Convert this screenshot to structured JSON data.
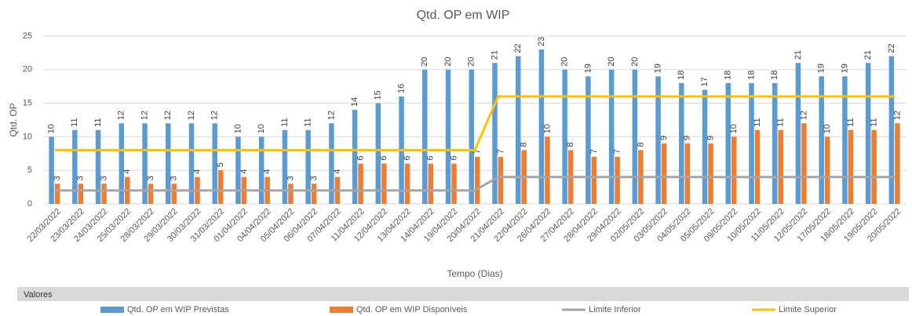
{
  "chart_data": {
    "type": "bar",
    "title": "Qtd. OP em WIP",
    "x_label": "Tempo (Dias)",
    "y_label": "Qtd. OP",
    "categories": [
      "22/03/2022",
      "23/03/2022",
      "24/03/2022",
      "25/03/2022",
      "28/03/2022",
      "29/03/2022",
      "30/03/2022",
      "31/03/2022",
      "01/04/2022",
      "04/04/2022",
      "05/04/2022",
      "06/04/2022",
      "07/04/2022",
      "11/04/2022",
      "12/04/2022",
      "13/04/2022",
      "14/04/2022",
      "19/04/2022",
      "20/04/2022",
      "21/04/2022",
      "22/04/2022",
      "26/04/2022",
      "27/04/2022",
      "28/04/2022",
      "29/04/2022",
      "02/05/2022",
      "03/05/2022",
      "04/05/2022",
      "05/05/2022",
      "09/05/2022",
      "10/05/2022",
      "11/05/2022",
      "12/05/2022",
      "17/05/2022",
      "18/05/2022",
      "19/05/2022",
      "20/05/2022"
    ],
    "series": [
      {
        "name": "Qtd. OP em WIP Previstas",
        "type": "bar",
        "color": "#5b9bd5",
        "values": [
          10,
          11,
          11,
          12,
          12,
          12,
          12,
          12,
          10,
          10,
          11,
          11,
          12,
          14,
          15,
          16,
          20,
          20,
          20,
          21,
          22,
          23,
          20,
          19,
          20,
          20,
          19,
          18,
          17,
          18,
          18,
          18,
          21,
          19,
          19,
          21,
          22
        ]
      },
      {
        "name": "Qtd. OP em WIP Disponíveis",
        "type": "bar",
        "color": "#ed7d31",
        "values": [
          3,
          3,
          3,
          4,
          3,
          3,
          4,
          5,
          4,
          4,
          3,
          3,
          4,
          6,
          6,
          6,
          6,
          6,
          7,
          7,
          8,
          10,
          8,
          7,
          7,
          8,
          9,
          9,
          9,
          10,
          11,
          11,
          12,
          10,
          11,
          11,
          12
        ]
      },
      {
        "name": "Limite Inferior",
        "type": "line",
        "color": "#a5a5a5",
        "values": [
          2,
          2,
          2,
          2,
          2,
          2,
          2,
          2,
          2,
          2,
          2,
          2,
          2,
          2,
          2,
          2,
          2,
          2,
          2,
          4,
          4,
          4,
          4,
          4,
          4,
          4,
          4,
          4,
          4,
          4,
          4,
          4,
          4,
          4,
          4,
          4,
          4
        ]
      },
      {
        "name": "Limite Superior",
        "type": "line",
        "color": "#ffc000",
        "values": [
          8,
          8,
          8,
          8,
          8,
          8,
          8,
          8,
          8,
          8,
          8,
          8,
          8,
          8,
          8,
          8,
          8,
          8,
          8,
          16,
          16,
          16,
          16,
          16,
          16,
          16,
          16,
          16,
          16,
          16,
          16,
          16,
          16,
          16,
          16,
          16,
          16
        ]
      }
    ],
    "ylim": [
      0,
      25
    ],
    "yticks": [
      0,
      5,
      10,
      15,
      20,
      25
    ],
    "grid": true,
    "legend": "bottom",
    "field_label": "Valores"
  }
}
